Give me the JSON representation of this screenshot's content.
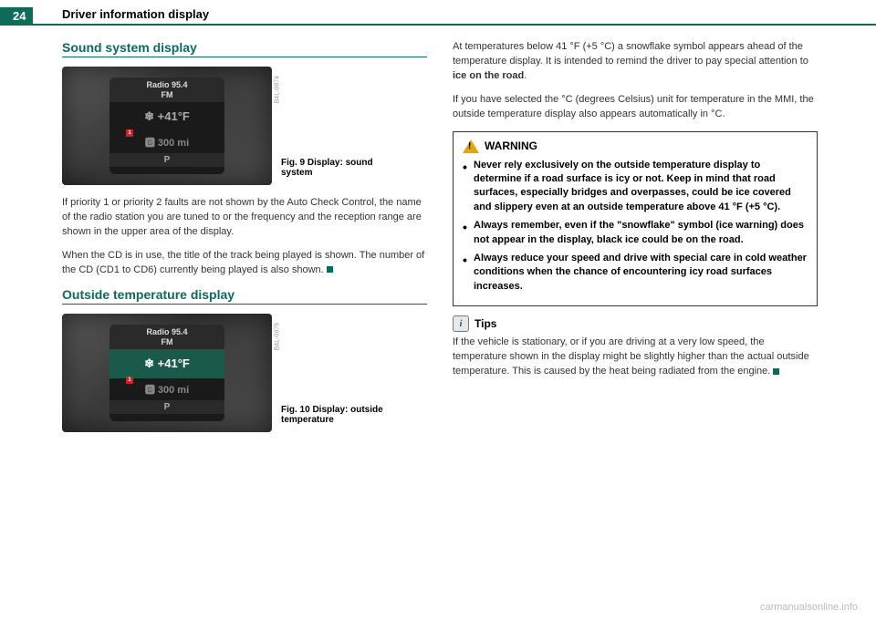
{
  "page_number": "24",
  "header_title": "Driver information display",
  "left": {
    "section1_title": "Sound system display",
    "fig9_caption": "Fig. 9  Display: sound system",
    "fig9_code": "B4L-0874",
    "para1": "If priority 1 or priority 2 faults are not shown by the Auto Check Control, the name of the radio station you are tuned to or the frequency and the reception range are shown in the upper area of the display.",
    "para2": "When the CD is in use, the title of the track being played is shown. The number of the CD (CD1 to CD6) currently being played is also shown. ",
    "section2_title": "Outside temperature display",
    "fig10_caption": "Fig. 10  Display: outside temperature",
    "fig10_code": "B4L-0875"
  },
  "right": {
    "para1": "At temperatures below 41 °F (+5 °C) a snowflake symbol appears ahead of the temperature display. It is intended to remind the driver to pay special attention to ",
    "para1_bold": "ice on the road",
    "para2": "If you have selected the °C (degrees Celsius) unit for temperature in the MMI, the outside temperature display also appears automatically in °C.",
    "warning_label": "WARNING",
    "warn1": "Never rely exclusively on the outside temperature display to determine if a road surface is icy or not. Keep in mind that road surfaces, especially bridges and overpasses, could be ice covered and slippery even at an outside temperature above 41 °F (+5 °C).",
    "warn2": "Always remember, even if the \"snowflake\" symbol (ice warning) does not appear in the display, black ice could be on the road.",
    "warn3": "Always reduce your speed and drive with special care in cold weather conditions when the chance of encountering icy road surfaces increases.",
    "tips_label": "Tips",
    "tips_text": "If the vehicle is stationary, or if you are driving at a very low speed, the temperature shown in the display might be slightly higher than the actual outside temperature. This is caused by the heat being radiated from the engine. "
  },
  "display": {
    "radio": "Radio 95.4",
    "fm": "FM",
    "temp": "❄ +41°F",
    "miles": "🅱  300 mi",
    "gear": "P"
  },
  "watermark": "carmanualsonline.info"
}
